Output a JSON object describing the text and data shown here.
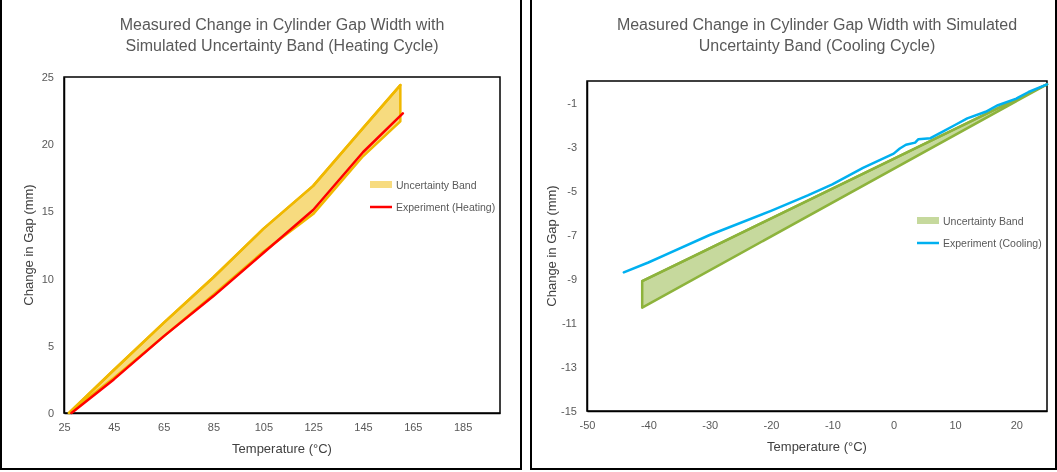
{
  "chart_data": [
    {
      "type": "line",
      "title": "Measured Change in Cylinder Gap Width with Simulated Uncertainty Band (Heating Cycle)",
      "xlabel": "Temperature (°C)",
      "ylabel": "Change in Gap (mm)",
      "xlim": [
        25,
        200
      ],
      "xticks": [
        25,
        45,
        65,
        85,
        105,
        125,
        145,
        165,
        185
      ],
      "ylim": [
        0,
        25
      ],
      "yticks": [
        0,
        5,
        10,
        15,
        20,
        25
      ],
      "grid": false,
      "legend": "right",
      "series": [
        {
          "name": "Uncertainty Band",
          "color": "#f0b800",
          "x": [
            27,
            45,
            65,
            85,
            105,
            125,
            145,
            160
          ],
          "values": [
            0,
            3.2,
            6.7,
            10.1,
            13.7,
            16.9,
            21.2,
            24.4
          ],
          "lower": [
            0,
            2.6,
            5.7,
            8.8,
            12.0,
            14.8,
            19.1,
            21.7
          ],
          "upper": [
            0,
            3.2,
            6.7,
            10.1,
            13.7,
            16.9,
            21.2,
            24.4
          ]
        },
        {
          "name": "Experiment (Heating)",
          "color": "#ff0000",
          "x": [
            28,
            45,
            65,
            85,
            105,
            125,
            145,
            161
          ],
          "values": [
            0,
            2.5,
            5.7,
            8.7,
            11.9,
            15.1,
            19.4,
            22.3
          ]
        }
      ]
    },
    {
      "type": "line",
      "title": "Measured Change in Cylinder Gap Width with Simulated Uncertainty Band (Cooling Cycle)",
      "xlabel": "Temperature (°C)",
      "ylabel": "Change in Gap (mm)",
      "xlim": [
        -50,
        25
      ],
      "xticks": [
        -50,
        -40,
        -30,
        -20,
        -10,
        0,
        10,
        20
      ],
      "ylim": [
        -15,
        0
      ],
      "yticks": [
        -15,
        -13,
        -11,
        -9,
        -7,
        -5,
        -3,
        -1
      ],
      "grid": false,
      "legend": "right",
      "series": [
        {
          "name": "Uncertainty Band",
          "color": "#8db33c",
          "x": [
            -41,
            25
          ],
          "values": [
            -9.1,
            -0.15
          ],
          "lower": [
            -10.3,
            -0.15
          ],
          "upper": [
            -9.1,
            -0.15
          ]
        },
        {
          "name": "Experiment (Cooling)",
          "color": "#00b0f0",
          "x": [
            -44,
            -40,
            -30,
            -20,
            -14,
            -10,
            -5,
            0,
            1,
            2,
            3.5,
            4,
            6,
            8,
            10,
            12,
            15,
            17,
            20,
            22,
            25
          ],
          "values": [
            -8.7,
            -8.25,
            -7.0,
            -5.9,
            -5.2,
            -4.7,
            -3.95,
            -3.3,
            -3.07,
            -2.9,
            -2.8,
            -2.65,
            -2.6,
            -2.3,
            -2.0,
            -1.7,
            -1.4,
            -1.1,
            -0.8,
            -0.5,
            -0.15
          ]
        }
      ]
    }
  ]
}
